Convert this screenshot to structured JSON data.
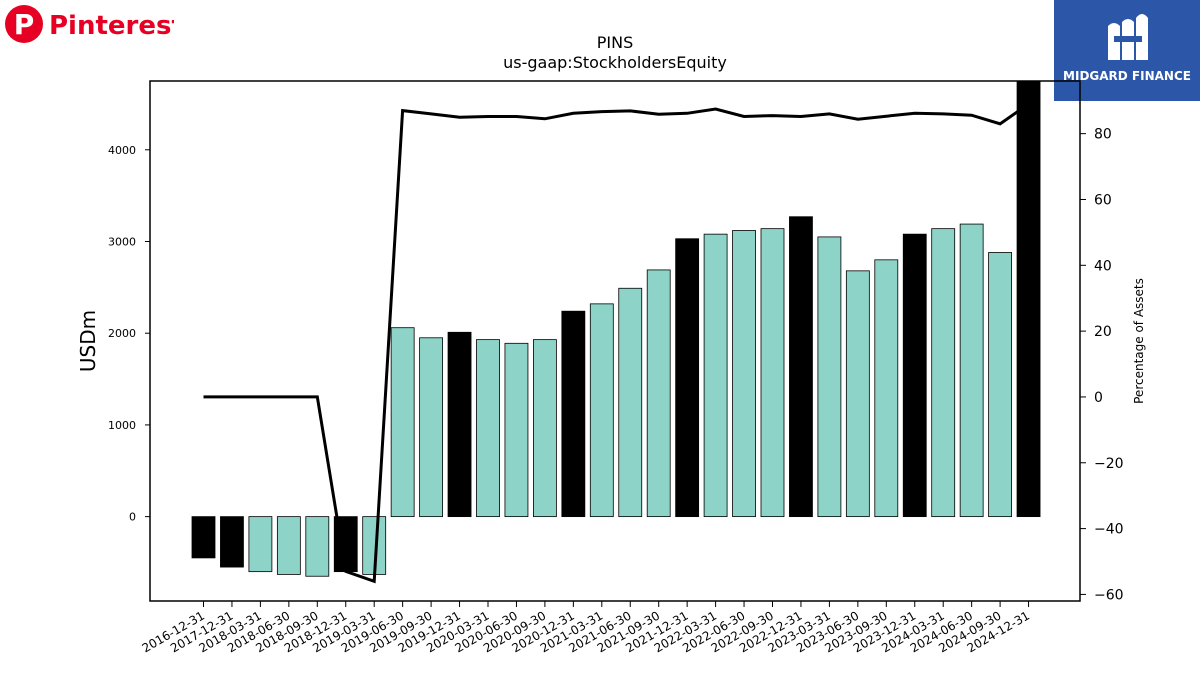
{
  "logos": {
    "left_brand": "Pinterest",
    "right_brand": "MIDGARD FINANCE"
  },
  "colors": {
    "pinterest_red": "#e60023",
    "midgard_blue": "#2c57a8",
    "bar_teal": "#8dd3c7",
    "bar_black": "#000000",
    "line": "#000000"
  },
  "chart_data": {
    "type": "bar",
    "title": "PINS",
    "subtitle": "us-gaap:StockholdersEquity",
    "ylabel": "USDm",
    "y2label": "Percentage of Assets",
    "ylim": [
      -920,
      4750
    ],
    "y2lim": [
      -62,
      96
    ],
    "yticks": [
      0,
      1000,
      2000,
      3000,
      4000
    ],
    "y2ticks": [
      -60,
      -40,
      -20,
      0,
      20,
      40,
      60,
      80
    ],
    "categories": [
      "2016-12-31",
      "2017-12-31",
      "2018-03-31",
      "2018-06-30",
      "2018-09-30",
      "2018-12-31",
      "2019-03-31",
      "2019-06-30",
      "2019-09-30",
      "2019-12-31",
      "2020-03-31",
      "2020-06-30",
      "2020-09-30",
      "2020-12-31",
      "2021-03-31",
      "2021-06-30",
      "2021-09-30",
      "2021-12-31",
      "2022-03-31",
      "2022-06-30",
      "2022-09-30",
      "2022-12-31",
      "2023-03-31",
      "2023-06-30",
      "2023-09-30",
      "2023-12-31",
      "2024-03-31",
      "2024-06-30",
      "2024-09-30",
      "2024-12-31"
    ],
    "series": [
      {
        "kind": "bar",
        "values": [
          -450,
          -550,
          -600,
          -630,
          -650,
          -600,
          -630,
          2060,
          1950,
          2010,
          1930,
          1890,
          1930,
          2240,
          2320,
          2490,
          2690,
          3030,
          3080,
          3120,
          3140,
          3270,
          3050,
          2680,
          2800,
          3080,
          3140,
          3190,
          2880,
          4750
        ],
        "fill": [
          "black",
          "black",
          "teal",
          "teal",
          "teal",
          "black",
          "teal",
          "teal",
          "teal",
          "black",
          "teal",
          "teal",
          "teal",
          "black",
          "teal",
          "teal",
          "teal",
          "black",
          "teal",
          "teal",
          "teal",
          "black",
          "teal",
          "teal",
          "teal",
          "black",
          "teal",
          "teal",
          "teal",
          "black"
        ]
      },
      {
        "kind": "line",
        "axis": "right",
        "values": [
          0,
          0,
          0,
          0,
          0,
          -53,
          -56,
          87,
          86,
          85,
          85.2,
          85.2,
          84.5,
          86.2,
          86.7,
          86.9,
          85.9,
          86.2,
          87.5,
          85.2,
          85.5,
          85.2,
          86,
          84.4,
          85.3,
          86.2,
          86,
          85.6,
          83,
          89
        ]
      }
    ]
  }
}
